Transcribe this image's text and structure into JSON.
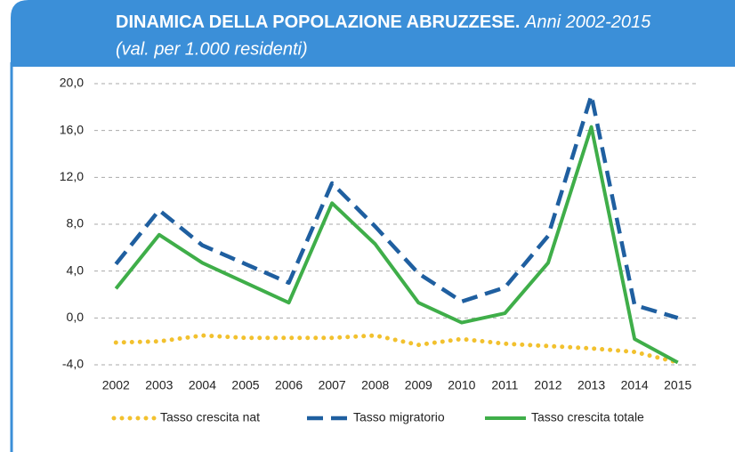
{
  "chart_data": {
    "type": "line",
    "title": "DINAMICA DELLA POPOLAZIONE ABRUZZESE.",
    "subtitle": "Anni 2002-2015",
    "note": "(val. per 1.000 residenti)",
    "categories": [
      "2002",
      "2003",
      "2004",
      "2005",
      "2006",
      "2007",
      "2008",
      "2009",
      "2010",
      "2011",
      "2012",
      "2013",
      "2014",
      "2015"
    ],
    "series": [
      {
        "name": "Tasso crescita nat",
        "color": "#f2c12e",
        "style": "dotted",
        "values": [
          -2.1,
          -2.0,
          -1.5,
          -1.7,
          -1.7,
          -1.7,
          -1.5,
          -2.3,
          -1.8,
          -2.2,
          -2.4,
          -2.6,
          -2.9,
          -3.8
        ]
      },
      {
        "name": "Tasso migratorio",
        "color": "#1f5fa0",
        "style": "dashed",
        "values": [
          4.6,
          9.2,
          6.2,
          4.6,
          3.0,
          11.5,
          7.8,
          3.8,
          1.4,
          2.6,
          7.0,
          19.0,
          1.1,
          0.0
        ]
      },
      {
        "name": "Tasso crescita totale",
        "color": "#3fae49",
        "style": "solid",
        "values": [
          2.5,
          7.1,
          4.7,
          3.0,
          1.3,
          9.8,
          6.3,
          1.3,
          -0.4,
          0.4,
          4.7,
          16.3,
          -1.8,
          -3.8
        ]
      }
    ],
    "ylim": [
      -4,
      20
    ],
    "yticks": [
      {
        "value": -4,
        "label": "-4,0"
      },
      {
        "value": 0,
        "label": "0,0"
      },
      {
        "value": 4,
        "label": "4,0"
      },
      {
        "value": 8,
        "label": "8,0"
      },
      {
        "value": 12,
        "label": "12,0"
      },
      {
        "value": 16,
        "label": "16,0"
      },
      {
        "value": 20,
        "label": "20,0"
      }
    ],
    "grid": true,
    "legend": "bottom"
  }
}
